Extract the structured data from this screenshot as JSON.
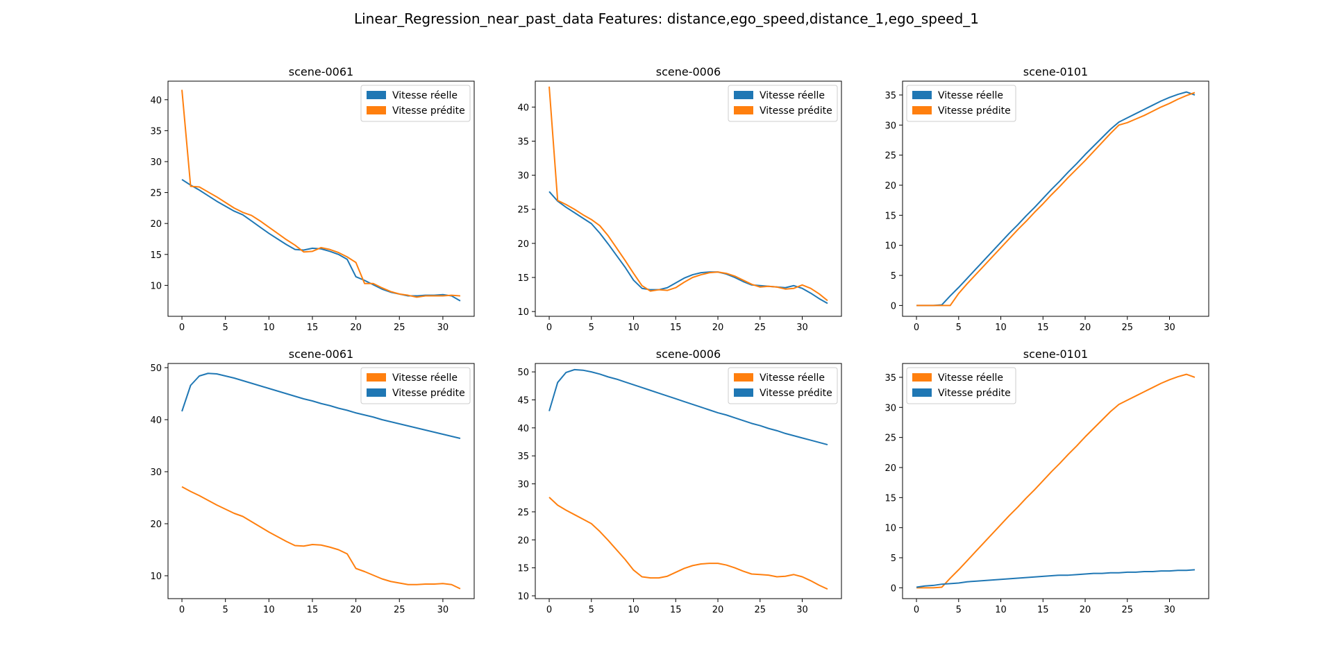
{
  "suptitle": "Linear_Regression_near_past_data Features: distance,ego_speed,distance_1,ego_speed_1",
  "colors": {
    "blue": "#1f77b4",
    "orange": "#ff7f0e"
  },
  "chart_data": [
    {
      "type": "line",
      "title": "scene-0061",
      "xlim": [
        -1.6,
        33.6
      ],
      "ylim": [
        5.0,
        43.0
      ],
      "xticks": [
        0,
        5,
        10,
        15,
        20,
        25,
        30
      ],
      "yticks": [
        10,
        15,
        20,
        25,
        30,
        35,
        40
      ],
      "legend": "upper right",
      "series": [
        {
          "name": "Vitesse réelle",
          "color": "#1f77b4",
          "y": [
            27.1,
            26.2,
            25.4,
            24.5,
            23.6,
            22.8,
            22.0,
            21.4,
            20.4,
            19.4,
            18.4,
            17.5,
            16.6,
            15.8,
            15.7,
            16.0,
            15.9,
            15.5,
            15.0,
            14.2,
            11.4,
            10.8,
            10.1,
            9.4,
            8.9,
            8.6,
            8.3,
            8.3,
            8.4,
            8.4,
            8.5,
            8.3,
            7.5
          ]
        },
        {
          "name": "Vitesse prédite",
          "color": "#ff7f0e",
          "y": [
            41.6,
            26.0,
            25.9,
            25.1,
            24.3,
            23.4,
            22.5,
            21.8,
            21.3,
            20.4,
            19.4,
            18.4,
            17.4,
            16.5,
            15.4,
            15.5,
            16.1,
            15.8,
            15.3,
            14.6,
            13.7,
            10.3,
            10.3,
            9.6,
            9.0,
            8.6,
            8.4,
            8.1,
            8.3,
            8.3,
            8.3,
            8.4,
            8.3
          ]
        }
      ]
    },
    {
      "type": "line",
      "title": "scene-0006",
      "xlim": [
        -1.65,
        34.65
      ],
      "ylim": [
        9.3,
        43.8
      ],
      "xticks": [
        0,
        5,
        10,
        15,
        20,
        25,
        30
      ],
      "yticks": [
        10,
        15,
        20,
        25,
        30,
        35,
        40
      ],
      "legend": "upper right",
      "series": [
        {
          "name": "Vitesse réelle",
          "color": "#1f77b4",
          "y": [
            27.6,
            26.2,
            25.3,
            24.5,
            23.7,
            22.9,
            21.5,
            19.9,
            18.2,
            16.5,
            14.6,
            13.4,
            13.2,
            13.2,
            13.5,
            14.2,
            14.9,
            15.4,
            15.7,
            15.8,
            15.8,
            15.5,
            15.0,
            14.4,
            13.9,
            13.8,
            13.7,
            13.6,
            13.5,
            13.8,
            13.4,
            12.7,
            11.9,
            11.2
          ]
        },
        {
          "name": "Vitesse prédite",
          "color": "#ff7f0e",
          "y": [
            43.0,
            26.3,
            25.7,
            25.0,
            24.2,
            23.5,
            22.6,
            21.1,
            19.3,
            17.5,
            15.6,
            13.8,
            13.0,
            13.2,
            13.1,
            13.5,
            14.3,
            15.0,
            15.4,
            15.7,
            15.8,
            15.6,
            15.2,
            14.6,
            14.0,
            13.6,
            13.7,
            13.6,
            13.3,
            13.4,
            13.9,
            13.4,
            12.6,
            11.6
          ]
        }
      ]
    },
    {
      "type": "line",
      "title": "scene-0101",
      "xlim": [
        -1.65,
        34.65
      ],
      "ylim": [
        -1.8,
        37.3
      ],
      "xticks": [
        0,
        5,
        10,
        15,
        20,
        25,
        30
      ],
      "yticks": [
        0,
        5,
        10,
        15,
        20,
        25,
        30,
        35
      ],
      "legend": "upper left",
      "series": [
        {
          "name": "Vitesse réelle",
          "color": "#1f77b4",
          "y": [
            0.0,
            0.0,
            0.0,
            0.1,
            1.6,
            3.0,
            4.5,
            6.0,
            7.5,
            9.0,
            10.5,
            12.0,
            13.4,
            14.9,
            16.3,
            17.8,
            19.3,
            20.7,
            22.2,
            23.6,
            25.1,
            26.5,
            27.9,
            29.3,
            30.5,
            31.2,
            31.9,
            32.6,
            33.3,
            34.0,
            34.6,
            35.1,
            35.5,
            35.0
          ]
        },
        {
          "name": "Vitesse prédite",
          "color": "#ff7f0e",
          "y": [
            0.0,
            0.0,
            0.0,
            0.0,
            0.0,
            2.0,
            3.6,
            5.1,
            6.6,
            8.1,
            9.6,
            11.1,
            12.6,
            14.0,
            15.5,
            16.9,
            18.4,
            19.8,
            21.3,
            22.7,
            24.1,
            25.6,
            27.1,
            28.6,
            30.0,
            30.4,
            31.0,
            31.6,
            32.3,
            33.0,
            33.6,
            34.3,
            34.9,
            35.4
          ]
        }
      ]
    },
    {
      "type": "line",
      "title": "scene-0061",
      "xlim": [
        -1.6,
        33.6
      ],
      "ylim": [
        5.6,
        50.8
      ],
      "xticks": [
        0,
        5,
        10,
        15,
        20,
        25,
        30
      ],
      "yticks": [
        10,
        20,
        30,
        40,
        50
      ],
      "legend": "upper right",
      "series": [
        {
          "name": "Vitesse réelle",
          "color": "#ff7f0e",
          "y": [
            27.1,
            26.2,
            25.4,
            24.5,
            23.6,
            22.8,
            22.0,
            21.4,
            20.4,
            19.4,
            18.4,
            17.5,
            16.6,
            15.8,
            15.7,
            16.0,
            15.9,
            15.5,
            15.0,
            14.2,
            11.4,
            10.8,
            10.1,
            9.4,
            8.9,
            8.6,
            8.3,
            8.3,
            8.4,
            8.4,
            8.5,
            8.3,
            7.5
          ]
        },
        {
          "name": "Vitesse prédite",
          "color": "#1f77b4",
          "y": [
            41.6,
            46.6,
            48.4,
            48.9,
            48.8,
            48.4,
            48.0,
            47.5,
            47.0,
            46.5,
            46.0,
            45.5,
            45.0,
            44.5,
            44.0,
            43.6,
            43.1,
            42.7,
            42.2,
            41.8,
            41.3,
            40.9,
            40.5,
            40.0,
            39.6,
            39.2,
            38.8,
            38.4,
            38.0,
            37.6,
            37.2,
            36.8,
            36.4
          ]
        }
      ]
    },
    {
      "type": "line",
      "title": "scene-0006",
      "xlim": [
        -1.65,
        34.65
      ],
      "ylim": [
        9.5,
        51.5
      ],
      "xticks": [
        0,
        5,
        10,
        15,
        20,
        25,
        30
      ],
      "yticks": [
        10,
        15,
        20,
        25,
        30,
        35,
        40,
        45,
        50
      ],
      "legend": "upper right",
      "series": [
        {
          "name": "Vitesse réelle",
          "color": "#ff7f0e",
          "y": [
            27.6,
            26.2,
            25.3,
            24.5,
            23.7,
            22.9,
            21.5,
            19.9,
            18.2,
            16.5,
            14.6,
            13.4,
            13.2,
            13.2,
            13.5,
            14.2,
            14.9,
            15.4,
            15.7,
            15.8,
            15.8,
            15.5,
            15.0,
            14.4,
            13.9,
            13.8,
            13.7,
            13.4,
            13.5,
            13.8,
            13.4,
            12.7,
            11.9,
            11.2
          ]
        },
        {
          "name": "Vitesse prédite",
          "color": "#1f77b4",
          "y": [
            43.0,
            48.1,
            49.9,
            50.4,
            50.3,
            50.0,
            49.6,
            49.1,
            48.7,
            48.2,
            47.7,
            47.2,
            46.7,
            46.2,
            45.7,
            45.2,
            44.7,
            44.2,
            43.7,
            43.2,
            42.7,
            42.3,
            41.8,
            41.3,
            40.8,
            40.4,
            39.9,
            39.5,
            39.0,
            38.6,
            38.2,
            37.8,
            37.4,
            37.0
          ]
        }
      ]
    },
    {
      "type": "line",
      "title": "scene-0101",
      "xlim": [
        -1.65,
        34.65
      ],
      "ylim": [
        -1.8,
        37.3
      ],
      "xticks": [
        0,
        5,
        10,
        15,
        20,
        25,
        30
      ],
      "yticks": [
        0,
        5,
        10,
        15,
        20,
        25,
        30,
        35
      ],
      "legend": "upper left",
      "series": [
        {
          "name": "Vitesse réelle",
          "color": "#ff7f0e",
          "y": [
            0.0,
            0.0,
            0.0,
            0.1,
            1.6,
            3.0,
            4.5,
            6.0,
            7.5,
            9.0,
            10.5,
            12.0,
            13.4,
            14.9,
            16.3,
            17.8,
            19.3,
            20.7,
            22.2,
            23.6,
            25.1,
            26.5,
            27.9,
            29.3,
            30.5,
            31.2,
            31.9,
            32.6,
            33.3,
            34.0,
            34.6,
            35.1,
            35.5,
            35.0
          ]
        },
        {
          "name": "Vitesse prédite",
          "color": "#1f77b4",
          "y": [
            0.1,
            0.3,
            0.4,
            0.6,
            0.7,
            0.8,
            1.0,
            1.1,
            1.2,
            1.3,
            1.4,
            1.5,
            1.6,
            1.7,
            1.8,
            1.9,
            2.0,
            2.1,
            2.1,
            2.2,
            2.3,
            2.4,
            2.4,
            2.5,
            2.5,
            2.6,
            2.6,
            2.7,
            2.7,
            2.8,
            2.8,
            2.9,
            2.9,
            3.0
          ]
        }
      ]
    }
  ]
}
